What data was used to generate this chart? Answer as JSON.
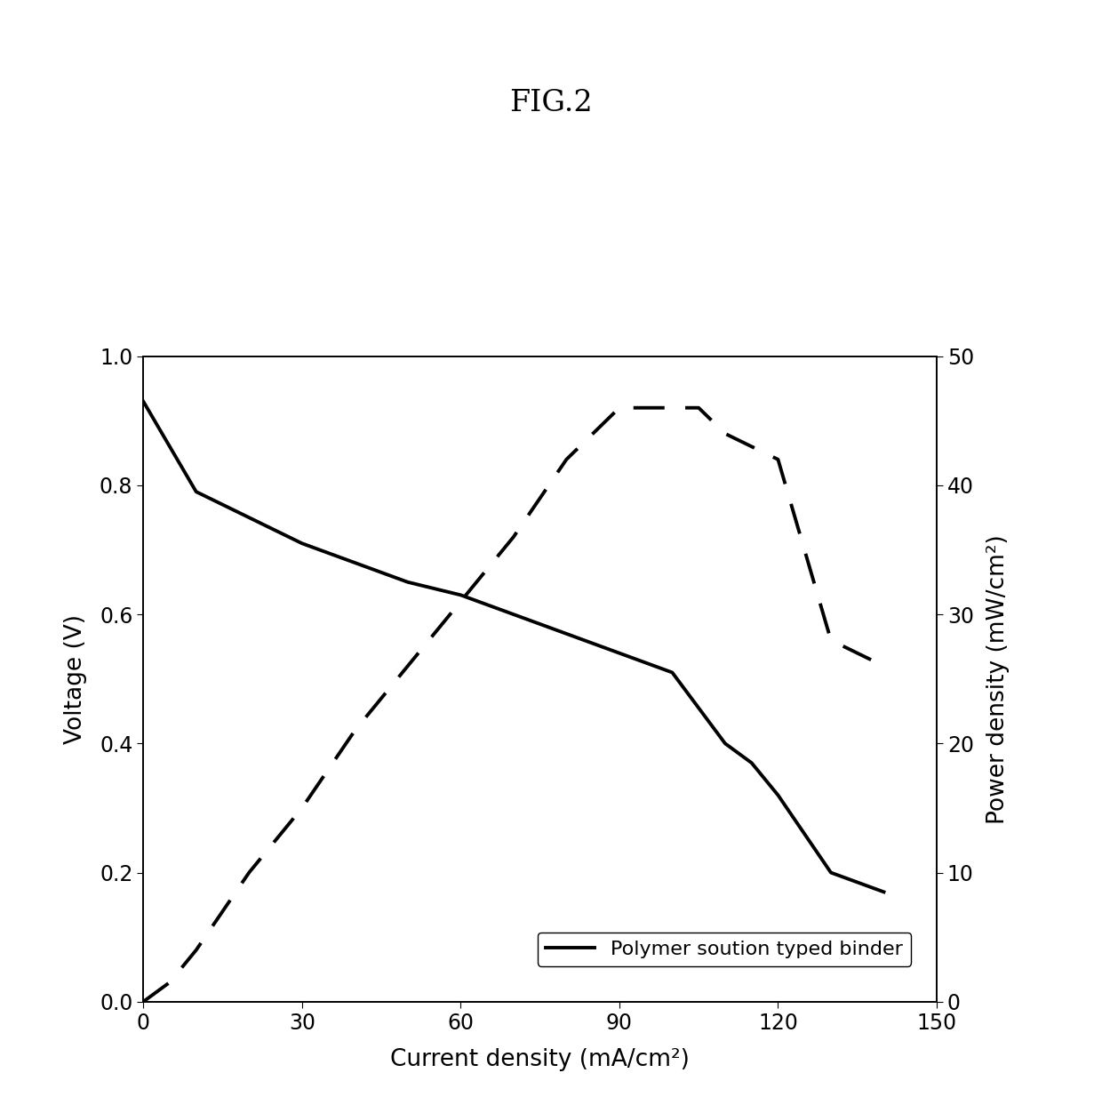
{
  "title": "FIG.2",
  "xlabel": "Current density (mA/cm²)",
  "ylabel_left": "Voltage (V)",
  "ylabel_right": "Power density (mW/cm²)",
  "xlim": [
    0,
    150
  ],
  "ylim_left": [
    0.0,
    1.0
  ],
  "ylim_right": [
    0,
    50
  ],
  "xticks": [
    0,
    30,
    60,
    90,
    120,
    150
  ],
  "yticks_left": [
    0.0,
    0.2,
    0.4,
    0.6,
    0.8,
    1.0
  ],
  "yticks_right": [
    0,
    10,
    20,
    30,
    40,
    50
  ],
  "voltage_x": [
    0,
    10,
    20,
    30,
    40,
    50,
    60,
    70,
    80,
    90,
    100,
    110,
    115,
    120,
    130,
    140
  ],
  "voltage_y": [
    0.93,
    0.79,
    0.75,
    0.71,
    0.68,
    0.65,
    0.63,
    0.6,
    0.57,
    0.54,
    0.51,
    0.4,
    0.37,
    0.32,
    0.2,
    0.17
  ],
  "power_x": [
    0,
    5,
    10,
    20,
    30,
    40,
    50,
    60,
    70,
    80,
    90,
    100,
    105,
    110,
    120,
    130,
    140
  ],
  "power_y": [
    0.0,
    1.5,
    4.0,
    10.0,
    15.0,
    21.0,
    26.0,
    31.0,
    36.0,
    42.0,
    46.0,
    46.0,
    46.0,
    44.0,
    42.0,
    28.0,
    26.0
  ],
  "legend_label": "Polymer soution typed binder",
  "line_color": "#000000",
  "background_color": "#ffffff",
  "title_fontsize": 24,
  "label_fontsize": 19,
  "tick_fontsize": 17,
  "legend_fontsize": 16,
  "linewidth": 2.8
}
